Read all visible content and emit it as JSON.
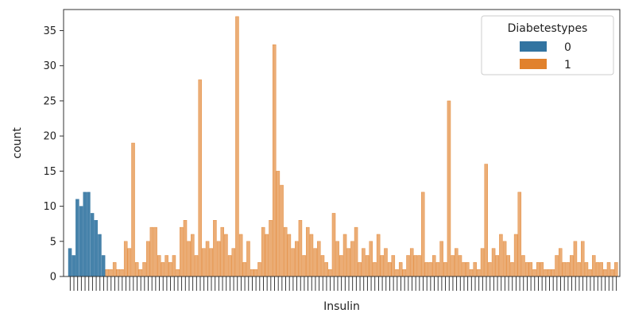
{
  "chart_data": {
    "type": "bar",
    "title": "",
    "xlabel": "Insulin",
    "ylabel": "count",
    "ylim": [
      0,
      38
    ],
    "yticks": [
      0,
      5,
      10,
      15,
      20,
      25,
      30,
      35
    ],
    "grid": false,
    "legend": {
      "title": "Diabetestypes",
      "placement": "top-right",
      "entries": [
        {
          "label": "0",
          "color": "#3274a1"
        },
        {
          "label": "1",
          "color": "#e1812c"
        }
      ]
    },
    "series": [
      {
        "name": "0",
        "color": "#3274a1",
        "values": [
          4,
          3,
          11,
          10,
          12,
          12,
          9,
          8,
          6,
          3
        ]
      },
      {
        "name": "1",
        "color": "#e1812c",
        "values": [
          1,
          1,
          2,
          1,
          1,
          5,
          4,
          19,
          2,
          1,
          2,
          5,
          7,
          7,
          3,
          2,
          3,
          2,
          3,
          1,
          7,
          8,
          5,
          6,
          3,
          28,
          4,
          5,
          4,
          8,
          5,
          7,
          6,
          3,
          4,
          37,
          6,
          2,
          5,
          1,
          1,
          2,
          7,
          6,
          8,
          33,
          15,
          13,
          7,
          6,
          4,
          5,
          8,
          3,
          7,
          6,
          4,
          5,
          3,
          2,
          1,
          9,
          5,
          3,
          6,
          4,
          5,
          7,
          2,
          4,
          3,
          5,
          2,
          6,
          3,
          4,
          2,
          3,
          1,
          2,
          1,
          3,
          4,
          3,
          3,
          12,
          2,
          2,
          3,
          2,
          5,
          2,
          25,
          3,
          4,
          3,
          2,
          2,
          1,
          2,
          1,
          4,
          16,
          2,
          4,
          3,
          6,
          5,
          3,
          2,
          6,
          12,
          3,
          2,
          2,
          1,
          2,
          2,
          1,
          1,
          1,
          3,
          4,
          2,
          2,
          3,
          5,
          2,
          5,
          2,
          1,
          3,
          2,
          2,
          1,
          2,
          1,
          2
        ]
      }
    ]
  }
}
